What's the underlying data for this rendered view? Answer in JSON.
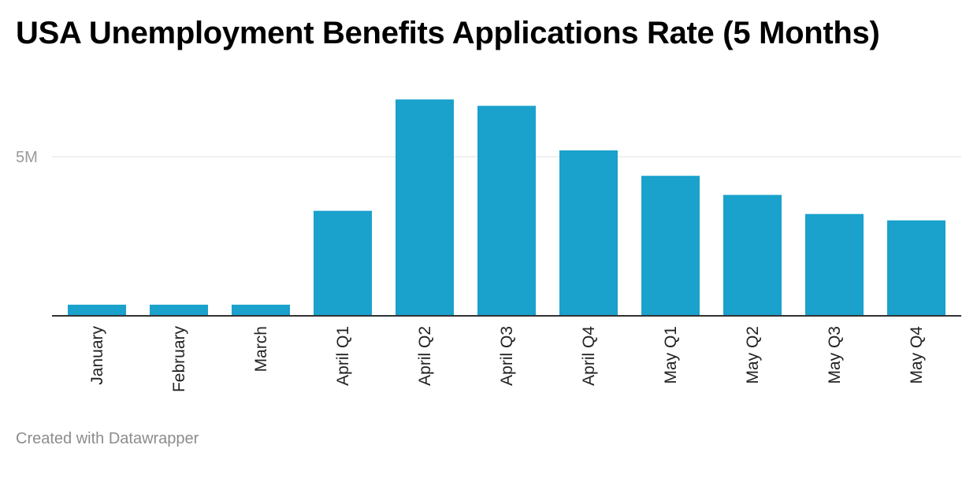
{
  "title": "USA Unemployment Benefits Applications Rate (5 Months)",
  "footer": "Created with Datawrapper",
  "colors": {
    "bar": "#1aa1cc",
    "gridline": "#e2e2e2",
    "baseline": "#333333"
  },
  "chart_data": {
    "type": "bar",
    "title": "USA Unemployment Benefits Applications Rate (5 Months)",
    "xlabel": "",
    "ylabel": "",
    "categories": [
      "January",
      "February",
      "March",
      "April Q1",
      "April Q2",
      "April Q3",
      "April Q4",
      "May Q1",
      "May Q2",
      "May Q3",
      "May Q4"
    ],
    "values": [
      350000,
      350000,
      350000,
      3300000,
      6800000,
      6600000,
      5200000,
      4400000,
      3800000,
      3200000,
      3000000
    ],
    "yticks": [
      {
        "value": 5000000,
        "label": "5M"
      }
    ],
    "ylim": [
      0,
      7000000
    ],
    "grid": true,
    "legend": "none"
  }
}
